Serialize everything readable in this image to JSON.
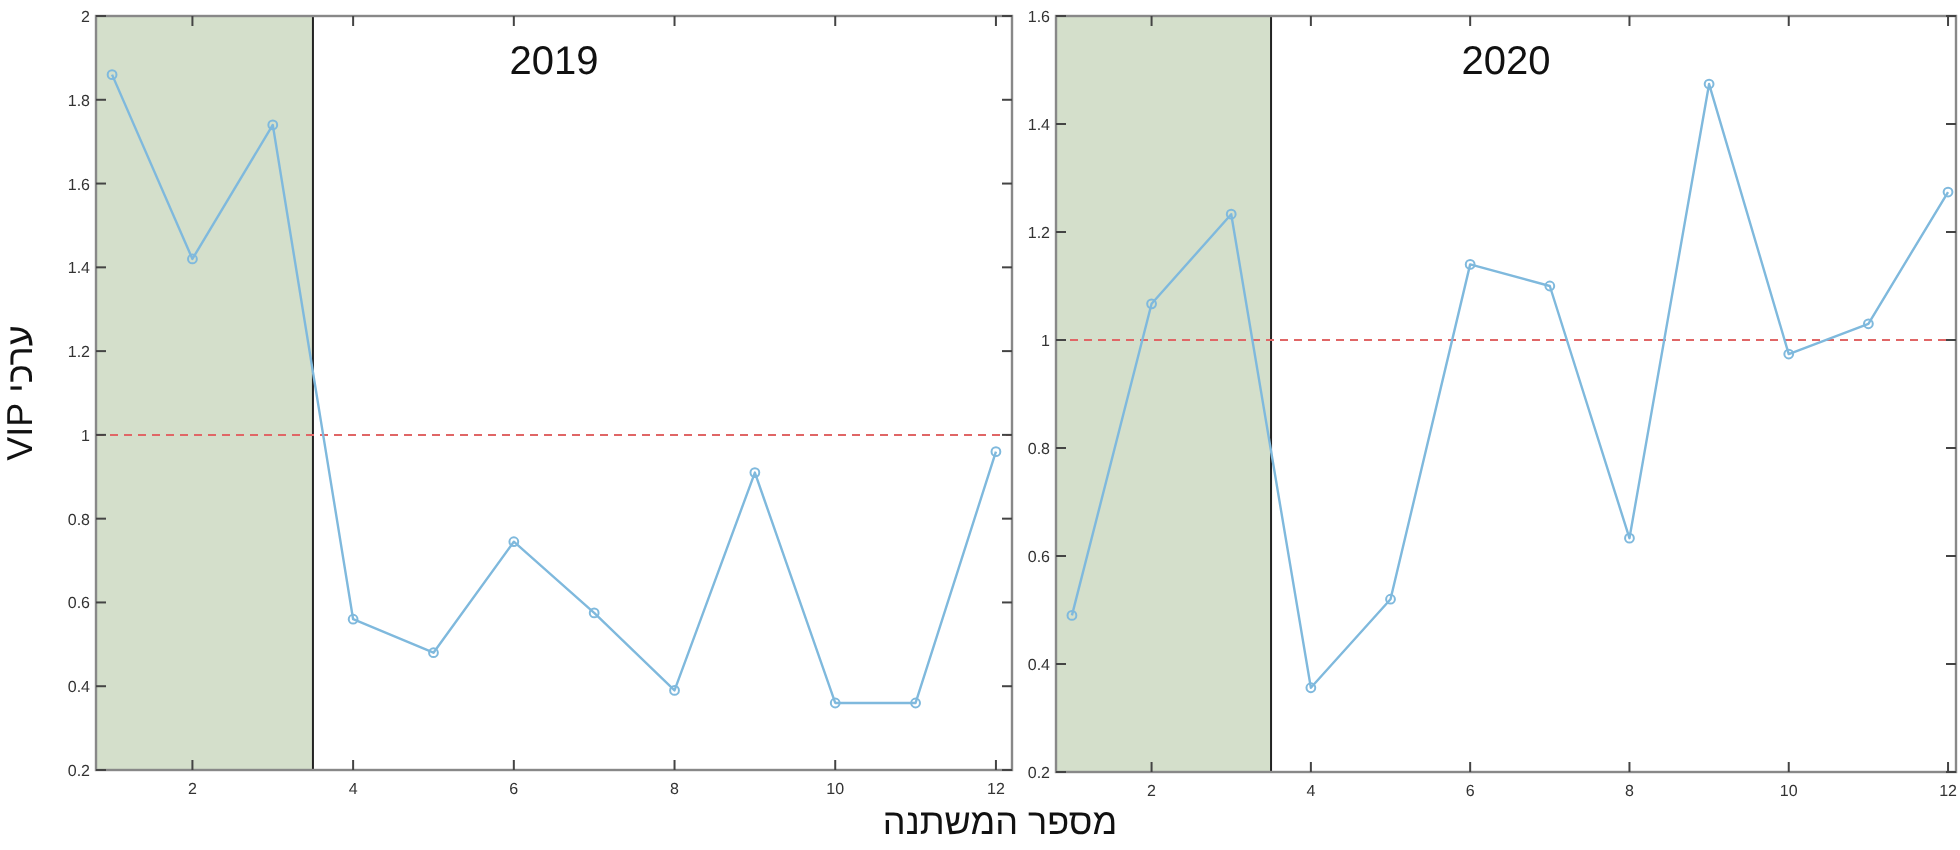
{
  "chart_data": [
    {
      "type": "line",
      "title": "2019",
      "ylabel": "ערכי VIP",
      "xlabel": "מספר המשתנה",
      "x": [
        1,
        2,
        3,
        4,
        5,
        6,
        7,
        8,
        9,
        10,
        11,
        12
      ],
      "series": [
        {
          "color": "#7fb9dd",
          "values": [
            1.86,
            1.42,
            1.74,
            0.56,
            0.48,
            0.745,
            0.575,
            0.39,
            0.91,
            0.36,
            0.36,
            0.96
          ]
        }
      ],
      "xlim": [
        0.8,
        12.2
      ],
      "xticks": [
        2,
        4,
        6,
        8,
        10,
        12
      ],
      "ylim": [
        0.2,
        2
      ],
      "yticks": [
        0.2,
        0.4,
        0.6,
        0.8,
        1,
        1.2,
        1.4,
        1.6,
        1.8,
        2
      ],
      "bands": [
        {
          "axis": "x",
          "from": 0.8,
          "to": 3.5,
          "color": "#d4dfcb"
        }
      ],
      "ref_lines": [
        {
          "axis": "y",
          "value": 1,
          "color": "#e06666",
          "line_style": "dashed"
        }
      ],
      "marker": "circle",
      "line_style": "solid",
      "grid": false
    },
    {
      "type": "line",
      "title": "2020",
      "x": [
        1,
        2,
        3,
        4,
        5,
        6,
        7,
        8,
        9,
        10,
        11,
        12
      ],
      "series": [
        {
          "color": "#7fb9dd",
          "values": [
            0.49,
            1.067,
            1.233,
            0.356,
            0.52,
            1.14,
            1.1,
            0.633,
            1.474,
            0.974,
            1.03,
            1.274
          ]
        }
      ],
      "xlim": [
        0.8,
        12.1
      ],
      "xticks": [
        2,
        4,
        6,
        8,
        10,
        12
      ],
      "ylim": [
        0.2,
        1.6
      ],
      "yticks": [
        0.2,
        0.4,
        0.6,
        0.8,
        1,
        1.2,
        1.4,
        1.6
      ],
      "bands": [
        {
          "axis": "x",
          "from": 0.8,
          "to": 3.5,
          "color": "#d4dfcb"
        }
      ],
      "ref_lines": [
        {
          "axis": "y",
          "value": 1,
          "color": "#e06666",
          "line_style": "dashed"
        }
      ],
      "marker": "circle",
      "line_style": "solid",
      "grid": false
    }
  ]
}
